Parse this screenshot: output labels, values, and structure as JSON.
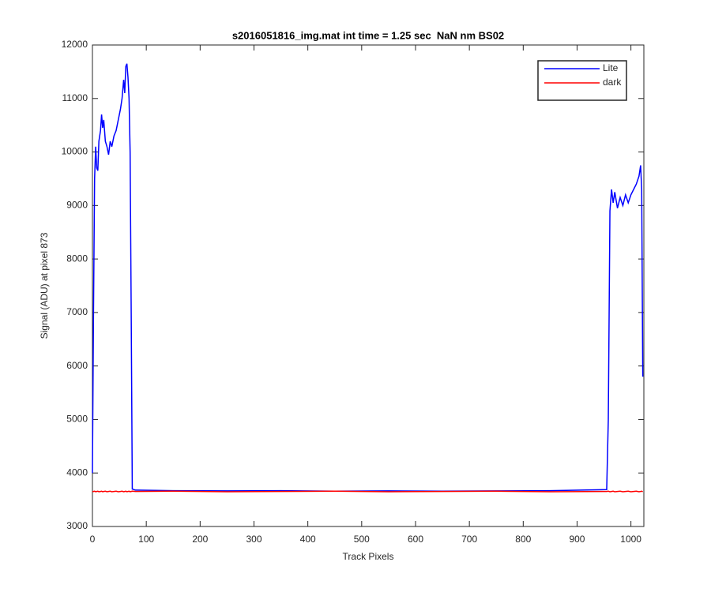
{
  "chart_data": {
    "type": "line",
    "title": "s2016051816_img.mat int time = 1.25 sec  NaN nm BS02",
    "x_label": "Track Pixels",
    "y_label": "Signal (ADU) at pixel 873",
    "x": [
      0,
      2,
      4,
      6,
      8,
      10,
      12,
      15,
      17,
      19,
      21,
      24,
      27,
      30,
      33,
      36,
      40,
      44,
      48,
      52,
      55,
      58,
      60,
      62,
      64,
      66,
      68,
      70,
      72,
      74,
      80,
      150,
      250,
      350,
      450,
      550,
      650,
      750,
      850,
      955,
      958,
      961,
      964,
      967,
      970,
      975,
      980,
      985,
      990,
      995,
      1000,
      1005,
      1010,
      1015,
      1018,
      1020,
      1022
    ],
    "series": [
      {
        "name": "Lite",
        "color": "#0000ff",
        "values": [
          4000,
          7000,
          9500,
          10100,
          9700,
          9650,
          10200,
          10400,
          10700,
          10450,
          10600,
          10200,
          10100,
          9950,
          10200,
          10100,
          10300,
          10400,
          10600,
          10800,
          11000,
          11350,
          11100,
          11600,
          11650,
          11400,
          11000,
          10000,
          7000,
          3700,
          3680,
          3670,
          3665,
          3670,
          3660,
          3665,
          3660,
          3665,
          3670,
          3690,
          5000,
          8900,
          9300,
          9050,
          9250,
          8950,
          9150,
          9000,
          9200,
          9050,
          9200,
          9300,
          9400,
          9550,
          9750,
          9300,
          5800
        ]
      },
      {
        "name": "dark",
        "color": "#ff0000",
        "values": [
          3650,
          3655,
          3660,
          3650,
          3655,
          3660,
          3650,
          3655,
          3660,
          3650,
          3655,
          3660,
          3650,
          3655,
          3660,
          3650,
          3655,
          3660,
          3650,
          3655,
          3660,
          3650,
          3655,
          3660,
          3650,
          3655,
          3660,
          3650,
          3655,
          3660,
          3655,
          3660,
          3650,
          3655,
          3660,
          3650,
          3655,
          3660,
          3650,
          3655,
          3660,
          3650,
          3655,
          3660,
          3650,
          3655,
          3660,
          3650,
          3655,
          3660,
          3650,
          3655,
          3660,
          3650,
          3655,
          3660,
          3650
        ]
      }
    ],
    "xlim": [
      0,
      1024
    ],
    "ylim": [
      3000,
      12000
    ],
    "xticks": [
      0,
      100,
      200,
      300,
      400,
      500,
      600,
      700,
      800,
      900,
      1000
    ],
    "yticks": [
      3000,
      4000,
      5000,
      6000,
      7000,
      8000,
      9000,
      10000,
      11000,
      12000
    ],
    "grid": false,
    "legend": "top-right"
  }
}
